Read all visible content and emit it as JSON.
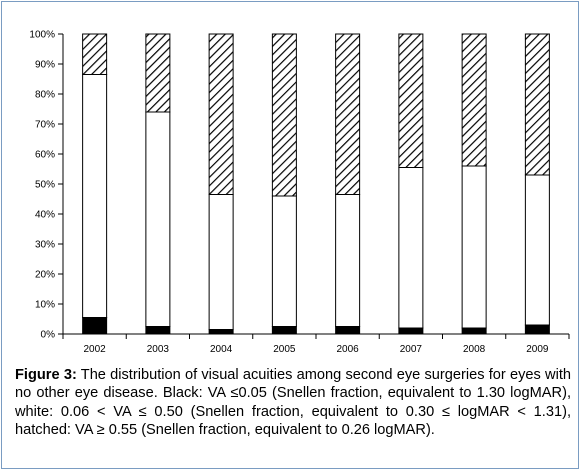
{
  "caption": {
    "label": "Figure 3:",
    "text": " The distribution of visual acuities among second eye surgeries for eyes with no other eye disease. Black: VA ≤0.05 (Snellen fraction, equivalent to 1.30 logMAR), white: 0.06 < VA ≤ 0.50 (Snellen fraction, equivalent to 0.30 ≤  logMAR < 1.31), hatched: VA ≥ 0.55 (Snellen fraction, equivalent to 0.26 logMAR)."
  },
  "chart_data": {
    "type": "bar",
    "stacked": true,
    "percent": true,
    "categories": [
      "2002",
      "2003",
      "2004",
      "2005",
      "2006",
      "2007",
      "2008",
      "2009"
    ],
    "series": [
      {
        "name": "",
        "fill": "black",
        "values": [
          5.5,
          2.5,
          1.5,
          2.5,
          2.5,
          2,
          2,
          3
        ]
      },
      {
        "name": "",
        "fill": "white",
        "values": [
          81,
          71.5,
          45,
          43.5,
          44,
          53.5,
          54,
          50
        ]
      },
      {
        "name": "",
        "fill": "hatched",
        "values": [
          13.5,
          26,
          53.5,
          54,
          53.5,
          44.5,
          44,
          47
        ]
      }
    ],
    "y_ticks": [
      "0%",
      "10%",
      "20%",
      "30%",
      "40%",
      "50%",
      "60%",
      "70%",
      "80%",
      "90%",
      "100%"
    ],
    "ylim": [
      0,
      100
    ],
    "xlabel": "",
    "ylabel": "",
    "title": "",
    "grid": false,
    "colors": {
      "black": "#000000",
      "white": "#ffffff",
      "outline": "#000000"
    }
  }
}
